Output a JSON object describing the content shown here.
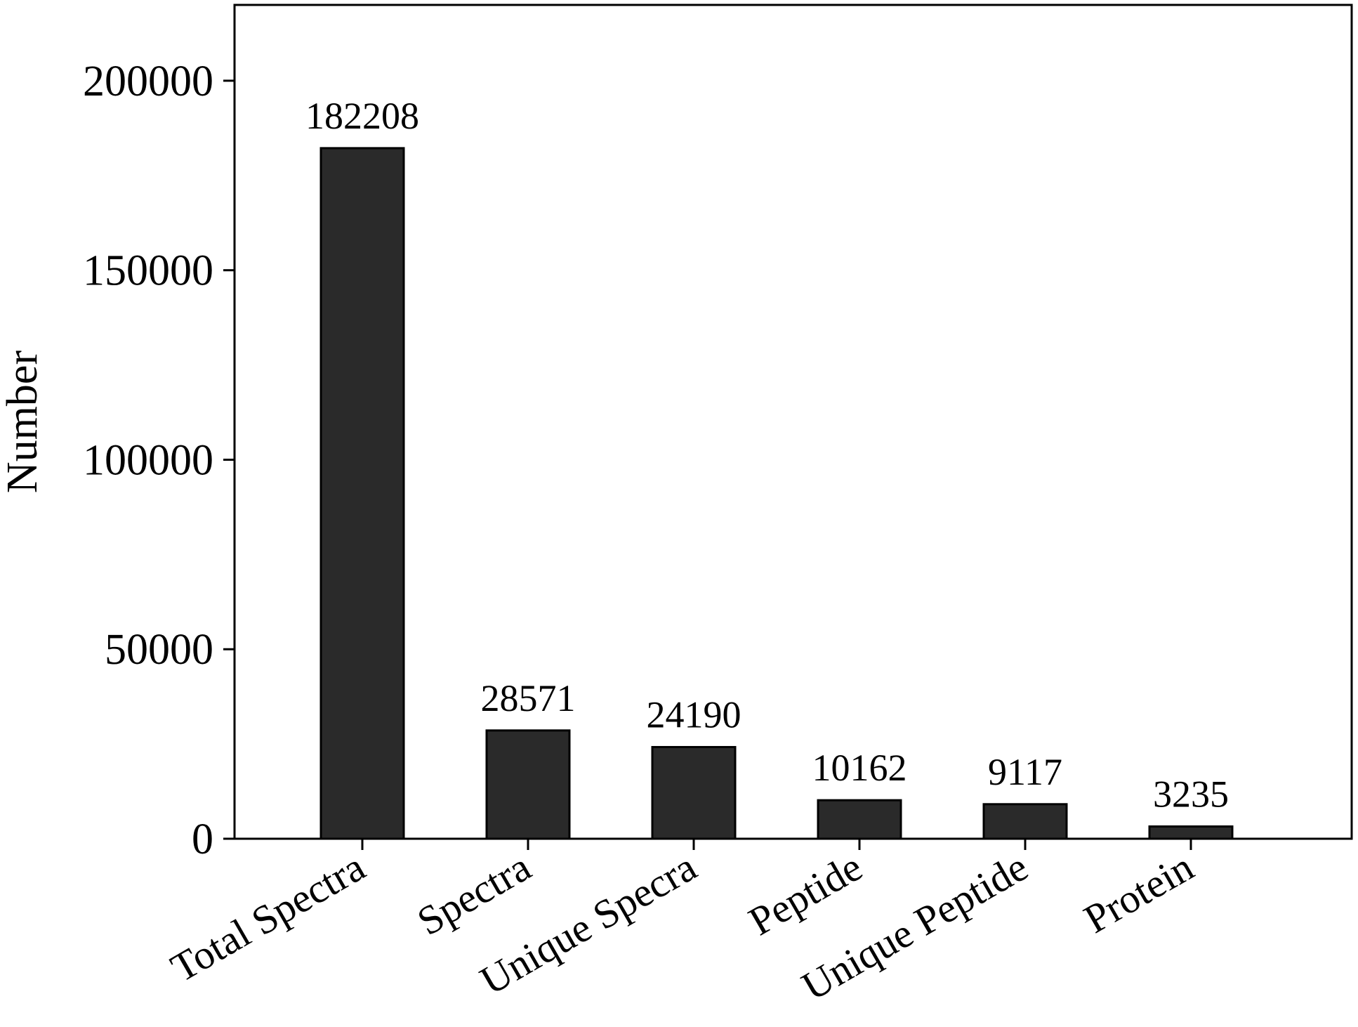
{
  "chart_data": {
    "type": "bar",
    "title": "",
    "xlabel": "",
    "ylabel": "Number",
    "categories": [
      "Total Spectra",
      "Spectra",
      "Unique Specra",
      "Peptide",
      "Unique Peptide",
      "Protein"
    ],
    "values": [
      182208,
      28571,
      24190,
      10162,
      9117,
      3235
    ],
    "data_labels": [
      "182208",
      "28571",
      "24190",
      "10162",
      "9117",
      "3235"
    ],
    "ylim": [
      0,
      220000
    ],
    "yticks": [
      0,
      50000,
      100000,
      150000,
      200000
    ],
    "ytick_labels": [
      "0",
      "50000",
      "100000",
      "150000",
      "200000"
    ],
    "grid": false,
    "legend": "none",
    "bar_color": "#2a2a2a",
    "x_tick_label_rotation": "-30deg"
  }
}
